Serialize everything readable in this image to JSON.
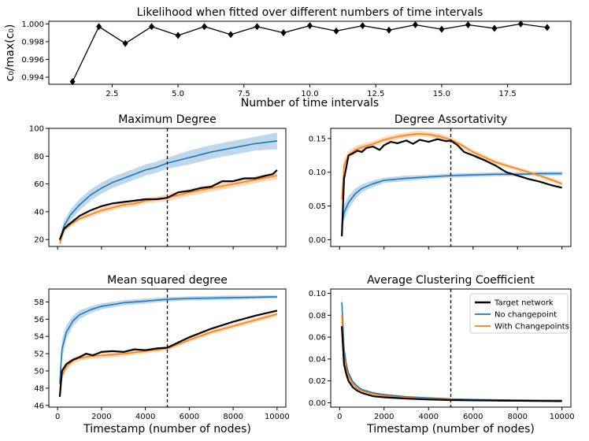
{
  "colors": {
    "target": "#000000",
    "nochange": "#1f77b4",
    "withcp": "#ff7f0e",
    "nochange_band": "#aac9e4",
    "withcp_band": "#ffc9a0"
  },
  "chart_data": [
    {
      "id": "likelihood",
      "type": "line",
      "title": "Likelihood when fitted over different numbers of time intervals",
      "xlabel": "Number of time intervals",
      "ylabel": "c₀/max(c₀)",
      "xlim": [
        0.1,
        19.9
      ],
      "ylim": [
        0.9932,
        1.0003
      ],
      "xticks": [
        2.5,
        5.0,
        7.5,
        10.0,
        12.5,
        15.0,
        17.5
      ],
      "xtick_labels": [
        "2.5",
        "5.0",
        "7.5",
        "10.0",
        "12.5",
        "15.0",
        "17.5"
      ],
      "yticks": [
        0.994,
        0.996,
        0.998,
        1.0
      ],
      "ytick_labels": [
        "0.994",
        "0.996",
        "0.998",
        "1.000"
      ],
      "marker": "diamond",
      "series": [
        {
          "x": [
            1,
            2,
            3,
            4,
            5,
            6,
            7,
            8,
            9,
            10,
            11,
            12,
            13,
            14,
            15,
            16,
            17,
            18,
            19
          ],
          "y": [
            0.9935,
            0.9997,
            0.9978,
            0.9997,
            0.9987,
            0.9997,
            0.9988,
            0.9997,
            0.999,
            0.9998,
            0.9992,
            0.9998,
            0.9993,
            0.9999,
            0.9994,
            0.9999,
            0.9995,
            1.0,
            0.9996
          ]
        }
      ]
    },
    {
      "id": "max-degree",
      "type": "line",
      "title": "Maximum Degree",
      "xlabel": "",
      "ylabel": "",
      "xlim": [
        -400,
        10400
      ],
      "ylim": [
        15,
        100
      ],
      "xticks": [
        0,
        2000,
        4000,
        6000,
        8000,
        10000
      ],
      "xtick_labels": [
        "",
        "",
        "",
        "",
        "",
        ""
      ],
      "yticks": [
        20,
        40,
        60,
        80,
        100
      ],
      "ytick_labels": [
        "20",
        "40",
        "60",
        "80",
        "100"
      ],
      "vline": 5000,
      "series": [
        {
          "name": "No changepoint",
          "color_key": "nochange",
          "band_key": "nochange_band",
          "x": [
            100,
            300,
            600,
            1000,
            1500,
            2000,
            2500,
            3000,
            3500,
            4000,
            4500,
            5000,
            6000,
            7000,
            8000,
            9000,
            10000
          ],
          "y": [
            19,
            30,
            38,
            45,
            52,
            57,
            61,
            64,
            67,
            70,
            72,
            75,
            79,
            83,
            86,
            89,
            91
          ],
          "band": [
            3,
            4,
            4,
            4,
            4,
            4,
            4,
            4,
            4,
            4,
            4,
            4,
            5,
            5,
            5,
            5,
            6
          ]
        },
        {
          "name": "With Changepoints",
          "color_key": "withcp",
          "band_key": "withcp_band",
          "x": [
            100,
            300,
            600,
            1000,
            1500,
            2000,
            2500,
            3000,
            3500,
            4000,
            4500,
            5000,
            6000,
            7000,
            8000,
            9000,
            10000
          ],
          "y": [
            17,
            27,
            31,
            35,
            38,
            41,
            43,
            45,
            46,
            48,
            49,
            50,
            54,
            57,
            60,
            63,
            66
          ],
          "band": [
            1.5,
            1.5,
            1.5,
            1.5,
            1.5,
            2,
            2,
            2,
            2,
            2,
            2,
            2.5,
            2.5,
            2.5,
            2.5,
            2.5,
            2.5
          ]
        },
        {
          "name": "Target network",
          "color_key": "target",
          "x": [
            100,
            300,
            600,
            1000,
            1500,
            2000,
            2500,
            3000,
            3500,
            4000,
            4500,
            5000,
            5500,
            6000,
            6500,
            7000,
            7500,
            8000,
            8500,
            9000,
            9500,
            9800,
            10000
          ],
          "y": [
            20,
            28,
            32,
            37,
            41,
            44,
            46,
            47,
            48,
            49,
            49,
            50,
            54,
            55,
            57,
            58,
            62,
            62,
            64,
            64,
            66,
            67,
            70
          ]
        }
      ]
    },
    {
      "id": "degree-assortativity",
      "type": "line",
      "title": "Degree Assortativity",
      "xlabel": "",
      "ylabel": "",
      "xlim": [
        -400,
        10400
      ],
      "ylim": [
        -0.01,
        0.165
      ],
      "xticks": [
        0,
        2000,
        4000,
        6000,
        8000,
        10000
      ],
      "xtick_labels": [
        "",
        "",
        "",
        "",
        "",
        ""
      ],
      "yticks": [
        0.0,
        0.05,
        0.1,
        0.15
      ],
      "ytick_labels": [
        "0.00",
        "0.05",
        "0.10",
        "0.15"
      ],
      "vline": 5000,
      "series": [
        {
          "name": "No changepoint",
          "color_key": "nochange",
          "band_key": "nochange_band",
          "x": [
            100,
            200,
            400,
            700,
            1000,
            1500,
            2000,
            3000,
            4000,
            5000,
            6000,
            7000,
            8000,
            9000,
            10000
          ],
          "y": [
            0.02,
            0.04,
            0.055,
            0.068,
            0.076,
            0.083,
            0.088,
            0.091,
            0.093,
            0.095,
            0.096,
            0.097,
            0.097,
            0.098,
            0.098
          ],
          "band": [
            0.015,
            0.012,
            0.01,
            0.008,
            0.006,
            0.005,
            0.004,
            0.004,
            0.003,
            0.003,
            0.003,
            0.003,
            0.003,
            0.003,
            0.003
          ]
        },
        {
          "name": "With Changepoints",
          "color_key": "withcp",
          "band_key": "withcp_band",
          "x": [
            100,
            200,
            400,
            700,
            1000,
            1500,
            2000,
            2500,
            3000,
            3500,
            4000,
            4500,
            5000,
            5500,
            6000,
            7000,
            8000,
            9000,
            10000
          ],
          "y": [
            0.06,
            0.11,
            0.125,
            0.133,
            0.137,
            0.142,
            0.148,
            0.152,
            0.155,
            0.157,
            0.156,
            0.153,
            0.148,
            0.14,
            0.13,
            0.115,
            0.105,
            0.095,
            0.083
          ],
          "band": [
            0.01,
            0.008,
            0.006,
            0.005,
            0.005,
            0.004,
            0.004,
            0.004,
            0.004,
            0.004,
            0.004,
            0.004,
            0.004,
            0.003,
            0.003,
            0.003,
            0.003,
            0.003,
            0.003
          ]
        },
        {
          "name": "Target network",
          "color_key": "target",
          "x": [
            100,
            200,
            400,
            600,
            800,
            1000,
            1200,
            1500,
            1800,
            2000,
            2300,
            2600,
            3000,
            3300,
            3600,
            4000,
            4400,
            4800,
            5000,
            5300,
            5600,
            6000,
            6500,
            7000,
            7500,
            8000,
            8500,
            9000,
            9500,
            10000
          ],
          "y": [
            0.005,
            0.09,
            0.125,
            0.128,
            0.132,
            0.13,
            0.136,
            0.138,
            0.133,
            0.14,
            0.145,
            0.143,
            0.147,
            0.142,
            0.148,
            0.145,
            0.149,
            0.146,
            0.147,
            0.14,
            0.13,
            0.125,
            0.118,
            0.11,
            0.1,
            0.095,
            0.09,
            0.086,
            0.081,
            0.077
          ]
        }
      ]
    },
    {
      "id": "mean-squared-degree",
      "type": "line",
      "title": "Mean squared degree",
      "xlabel": "Timestamp (number of nodes)",
      "ylabel": "",
      "xlim": [
        -400,
        10400
      ],
      "ylim": [
        45.8,
        59.5
      ],
      "xticks": [
        0,
        2000,
        4000,
        6000,
        8000,
        10000
      ],
      "xtick_labels": [
        "0",
        "2000",
        "4000",
        "6000",
        "8000",
        "10000"
      ],
      "yticks": [
        46,
        48,
        50,
        52,
        54,
        56,
        58
      ],
      "ytick_labels": [
        "46",
        "48",
        "50",
        "52",
        "54",
        "56",
        "58"
      ],
      "vline": 5000,
      "series": [
        {
          "name": "No changepoint",
          "color_key": "nochange",
          "band_key": "nochange_band",
          "x": [
            100,
            200,
            400,
            700,
            1000,
            1500,
            2000,
            3000,
            4000,
            5000,
            6000,
            7000,
            8000,
            9000,
            10000
          ],
          "y": [
            48.5,
            52.5,
            54.5,
            55.8,
            56.5,
            57.1,
            57.5,
            57.9,
            58.1,
            58.3,
            58.4,
            58.45,
            58.5,
            58.55,
            58.6
          ],
          "band": [
            1.5,
            1.2,
            0.8,
            0.6,
            0.5,
            0.4,
            0.35,
            0.3,
            0.3,
            0.25,
            0.25,
            0.25,
            0.25,
            0.2,
            0.2
          ]
        },
        {
          "name": "With Changepoints",
          "color_key": "withcp",
          "band_key": "withcp_band",
          "x": [
            100,
            200,
            400,
            700,
            1000,
            1500,
            2000,
            3000,
            4000,
            5000,
            6000,
            7000,
            8000,
            9000,
            10000
          ],
          "y": [
            47,
            49.5,
            50.5,
            51.2,
            51.5,
            51.7,
            51.8,
            52.0,
            52.3,
            52.6,
            53.6,
            54.5,
            55.2,
            55.9,
            56.6
          ],
          "band": [
            0.8,
            0.5,
            0.4,
            0.35,
            0.3,
            0.3,
            0.3,
            0.3,
            0.25,
            0.25,
            0.25,
            0.25,
            0.25,
            0.25,
            0.25
          ]
        },
        {
          "name": "Target network",
          "color_key": "target",
          "x": [
            100,
            200,
            400,
            700,
            1000,
            1300,
            1600,
            2000,
            2500,
            3000,
            3500,
            4000,
            4500,
            5000,
            5500,
            6000,
            7000,
            8000,
            9000,
            10000
          ],
          "y": [
            47,
            50,
            50.8,
            51.3,
            51.6,
            52.0,
            51.8,
            52.2,
            52.3,
            52.2,
            52.5,
            52.4,
            52.6,
            52.7,
            53.3,
            53.9,
            54.9,
            55.7,
            56.4,
            57.0
          ]
        }
      ]
    },
    {
      "id": "avg-clustering",
      "type": "line",
      "title": "Average Clustering Coefficient",
      "xlabel": "Timestamp (number of nodes)",
      "ylabel": "",
      "xlim": [
        -400,
        10400
      ],
      "ylim": [
        -0.004,
        0.104
      ],
      "xticks": [
        0,
        2000,
        4000,
        6000,
        8000,
        10000
      ],
      "xtick_labels": [
        "0",
        "2000",
        "4000",
        "6000",
        "8000",
        "10000"
      ],
      "yticks": [
        0.0,
        0.02,
        0.04,
        0.06,
        0.08,
        0.1
      ],
      "ytick_labels": [
        "0.00",
        "0.02",
        "0.04",
        "0.06",
        "0.08",
        "0.10"
      ],
      "vline": 5000,
      "legend": "top-right",
      "series": [
        {
          "name": "No changepoint",
          "color_key": "nochange",
          "band_key": "nochange_band",
          "x": [
            100,
            200,
            300,
            400,
            600,
            800,
            1000,
            1500,
            2000,
            3000,
            4000,
            5000,
            6000,
            7000,
            8000,
            9000,
            10000
          ],
          "y": [
            0.092,
            0.05,
            0.035,
            0.027,
            0.019,
            0.015,
            0.012,
            0.009,
            0.0075,
            0.0055,
            0.0045,
            0.0035,
            0.003,
            0.0027,
            0.0025,
            0.0023,
            0.0022
          ],
          "band": [
            0.006,
            0.004,
            0.003,
            0.002,
            0.0015,
            0.001,
            0.001,
            0.0008,
            0.0006,
            0.0005,
            0.0004,
            0.0004,
            0.0003,
            0.0003,
            0.0003,
            0.0003,
            0.0003
          ]
        },
        {
          "name": "With Changepoints",
          "color_key": "withcp",
          "band_key": "withcp_band",
          "x": [
            100,
            200,
            300,
            400,
            600,
            800,
            1000,
            1500,
            2000,
            3000,
            4000,
            5000,
            6000,
            7000,
            8000,
            9000,
            10000
          ],
          "y": [
            0.08,
            0.042,
            0.03,
            0.024,
            0.017,
            0.013,
            0.011,
            0.008,
            0.0065,
            0.0048,
            0.0038,
            0.003,
            0.0025,
            0.0022,
            0.002,
            0.0018,
            0.0017
          ],
          "band": [
            0.005,
            0.003,
            0.002,
            0.002,
            0.0012,
            0.001,
            0.0008,
            0.0006,
            0.0005,
            0.0004,
            0.0003,
            0.0003,
            0.0003,
            0.0003,
            0.0002,
            0.0002,
            0.0002
          ]
        },
        {
          "name": "Target network",
          "color_key": "target",
          "x": [
            100,
            200,
            300,
            400,
            600,
            800,
            1000,
            1500,
            2000,
            3000,
            4000,
            5000,
            6000,
            7000,
            8000,
            9000,
            10000
          ],
          "y": [
            0.07,
            0.035,
            0.026,
            0.02,
            0.014,
            0.011,
            0.009,
            0.006,
            0.005,
            0.0038,
            0.003,
            0.0025,
            0.0022,
            0.002,
            0.0018,
            0.0016,
            0.0015
          ]
        }
      ]
    }
  ]
}
